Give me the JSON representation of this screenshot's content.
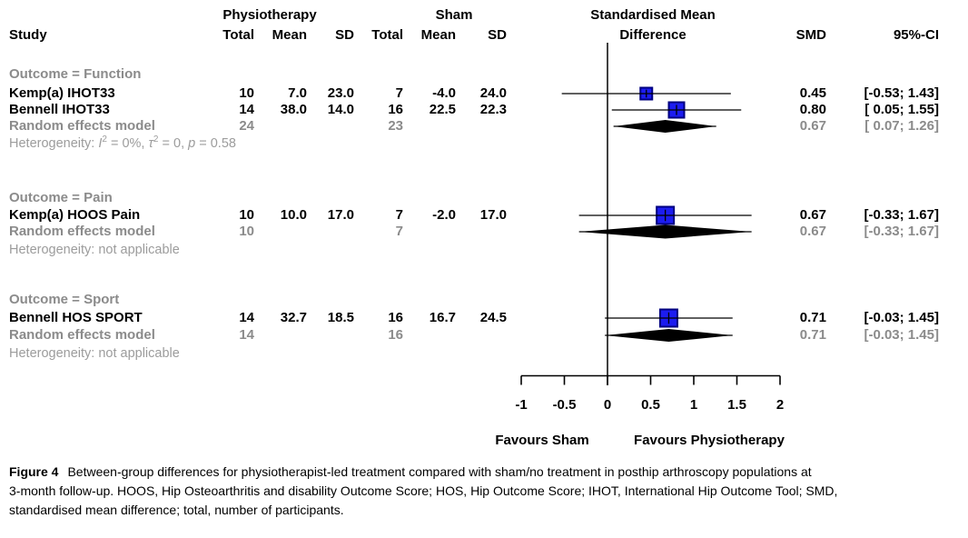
{
  "figure": {
    "header": {
      "study": "Study",
      "group1": "Physiotherapy",
      "group2": "Sham",
      "effect_line1": "Standardised Mean",
      "effect_line2": "Difference",
      "col_total": "Total",
      "col_mean": "Mean",
      "col_sd": "SD",
      "smd": "SMD",
      "ci": "95%-CI"
    },
    "sections": [
      {
        "label": "Outcome = Function",
        "studies": [
          {
            "name": "Kemp(a) IHOT33",
            "total1": "10",
            "mean1": "7.0",
            "sd1": "23.0",
            "total2": "7",
            "mean2": "-4.0",
            "sd2": "24.0",
            "smd": "0.45",
            "ci": "[-0.53; 1.43]"
          },
          {
            "name": "Bennell IHOT33",
            "total1": "14",
            "mean1": "38.0",
            "sd1": "14.0",
            "total2": "16",
            "mean2": "22.5",
            "sd2": "22.3",
            "smd": "0.80",
            "ci": "[ 0.05; 1.55]"
          }
        ],
        "pooled": {
          "name": "Random effects model",
          "total1": "24",
          "total2": "23",
          "smd": "0.67",
          "ci": "[ 0.07; 1.26]"
        },
        "heterogeneity": {
          "prefix": "Heterogeneity: ",
          "i": "I",
          "sup1": "2",
          "seg1": " = 0%, ",
          "tau": "τ",
          "sup2": "2",
          "seg2": " = 0, ",
          "p": "p",
          "seg3": " = 0.58"
        }
      },
      {
        "label": "Outcome = Pain",
        "studies": [
          {
            "name": "Kemp(a) HOOS Pain",
            "total1": "10",
            "mean1": "10.0",
            "sd1": "17.0",
            "total2": "7",
            "mean2": "-2.0",
            "sd2": "17.0",
            "smd": "0.67",
            "ci": "[-0.33; 1.67]"
          }
        ],
        "pooled": {
          "name": "Random effects model",
          "total1": "10",
          "total2": "7",
          "smd": "0.67",
          "ci": "[-0.33; 1.67]"
        },
        "heterogeneity_text": "Heterogeneity: not applicable"
      },
      {
        "label": "Outcome = Sport",
        "studies": [
          {
            "name": "Bennell HOS SPORT",
            "total1": "14",
            "mean1": "32.7",
            "sd1": "18.5",
            "total2": "16",
            "mean2": "16.7",
            "sd2": "24.5",
            "smd": "0.71",
            "ci": "[-0.03; 1.45]"
          }
        ],
        "pooled": {
          "name": "Random effects model",
          "total1": "14",
          "total2": "16",
          "smd": "0.71",
          "ci": "[-0.03; 1.45]"
        },
        "heterogeneity_text": "Heterogeneity: not applicable"
      }
    ],
    "axis": {
      "tick_labels": [
        "-1",
        "-0.5",
        "0",
        "0.5",
        "1",
        "1.5",
        "2"
      ],
      "favours_left": "Favours Sham",
      "favours_right": "Favours Physiotherapy"
    },
    "caption": {
      "label": "Figure 4",
      "line1": "Between-group differences for physiotherapist-led treatment compared with sham/no treatment in posthip arthroscopy populations at",
      "line2": "3-month follow-up. HOOS, Hip Osteoarthritis and disability Outcome Score; HOS, Hip Outcome Score; IHOT, International Hip Outcome Tool; SMD,",
      "line3": "standardised mean difference; total, number of participants."
    },
    "colors": {
      "square": "#1c1cf0",
      "square_border": "#000080",
      "pooled_diamond": "#000000",
      "group_label_gray": "#8b8b8b",
      "heterogeneity_gray": "#9c9c9c"
    }
  },
  "chart_data": {
    "type": "forest",
    "effect_measure": "Standardised Mean Difference",
    "xlim": [
      -1,
      2
    ],
    "x_ticks": [
      -1,
      -0.5,
      0,
      0.5,
      1,
      1.5,
      2
    ],
    "zero_line": 0,
    "xlabel_left": "Favours Sham",
    "xlabel_right": "Favours Physiotherapy",
    "groups": [
      {
        "outcome": "Function",
        "studies": [
          {
            "name": "Kemp(a) IHOT33",
            "smd": 0.45,
            "ci": [
              -0.53,
              1.43
            ]
          },
          {
            "name": "Bennell IHOT33",
            "smd": 0.8,
            "ci": [
              0.05,
              1.55
            ]
          }
        ],
        "pooled": {
          "name": "Random effects model",
          "smd": 0.67,
          "ci": [
            0.07,
            1.26
          ]
        }
      },
      {
        "outcome": "Pain",
        "studies": [
          {
            "name": "Kemp(a) HOOS Pain",
            "smd": 0.67,
            "ci": [
              -0.33,
              1.67
            ]
          }
        ],
        "pooled": {
          "name": "Random effects model",
          "smd": 0.67,
          "ci": [
            -0.33,
            1.67
          ]
        }
      },
      {
        "outcome": "Sport",
        "studies": [
          {
            "name": "Bennell HOS SPORT",
            "smd": 0.71,
            "ci": [
              -0.03,
              1.45
            ]
          }
        ],
        "pooled": {
          "name": "Random effects model",
          "smd": 0.71,
          "ci": [
            -0.03,
            1.45
          ]
        }
      }
    ]
  }
}
